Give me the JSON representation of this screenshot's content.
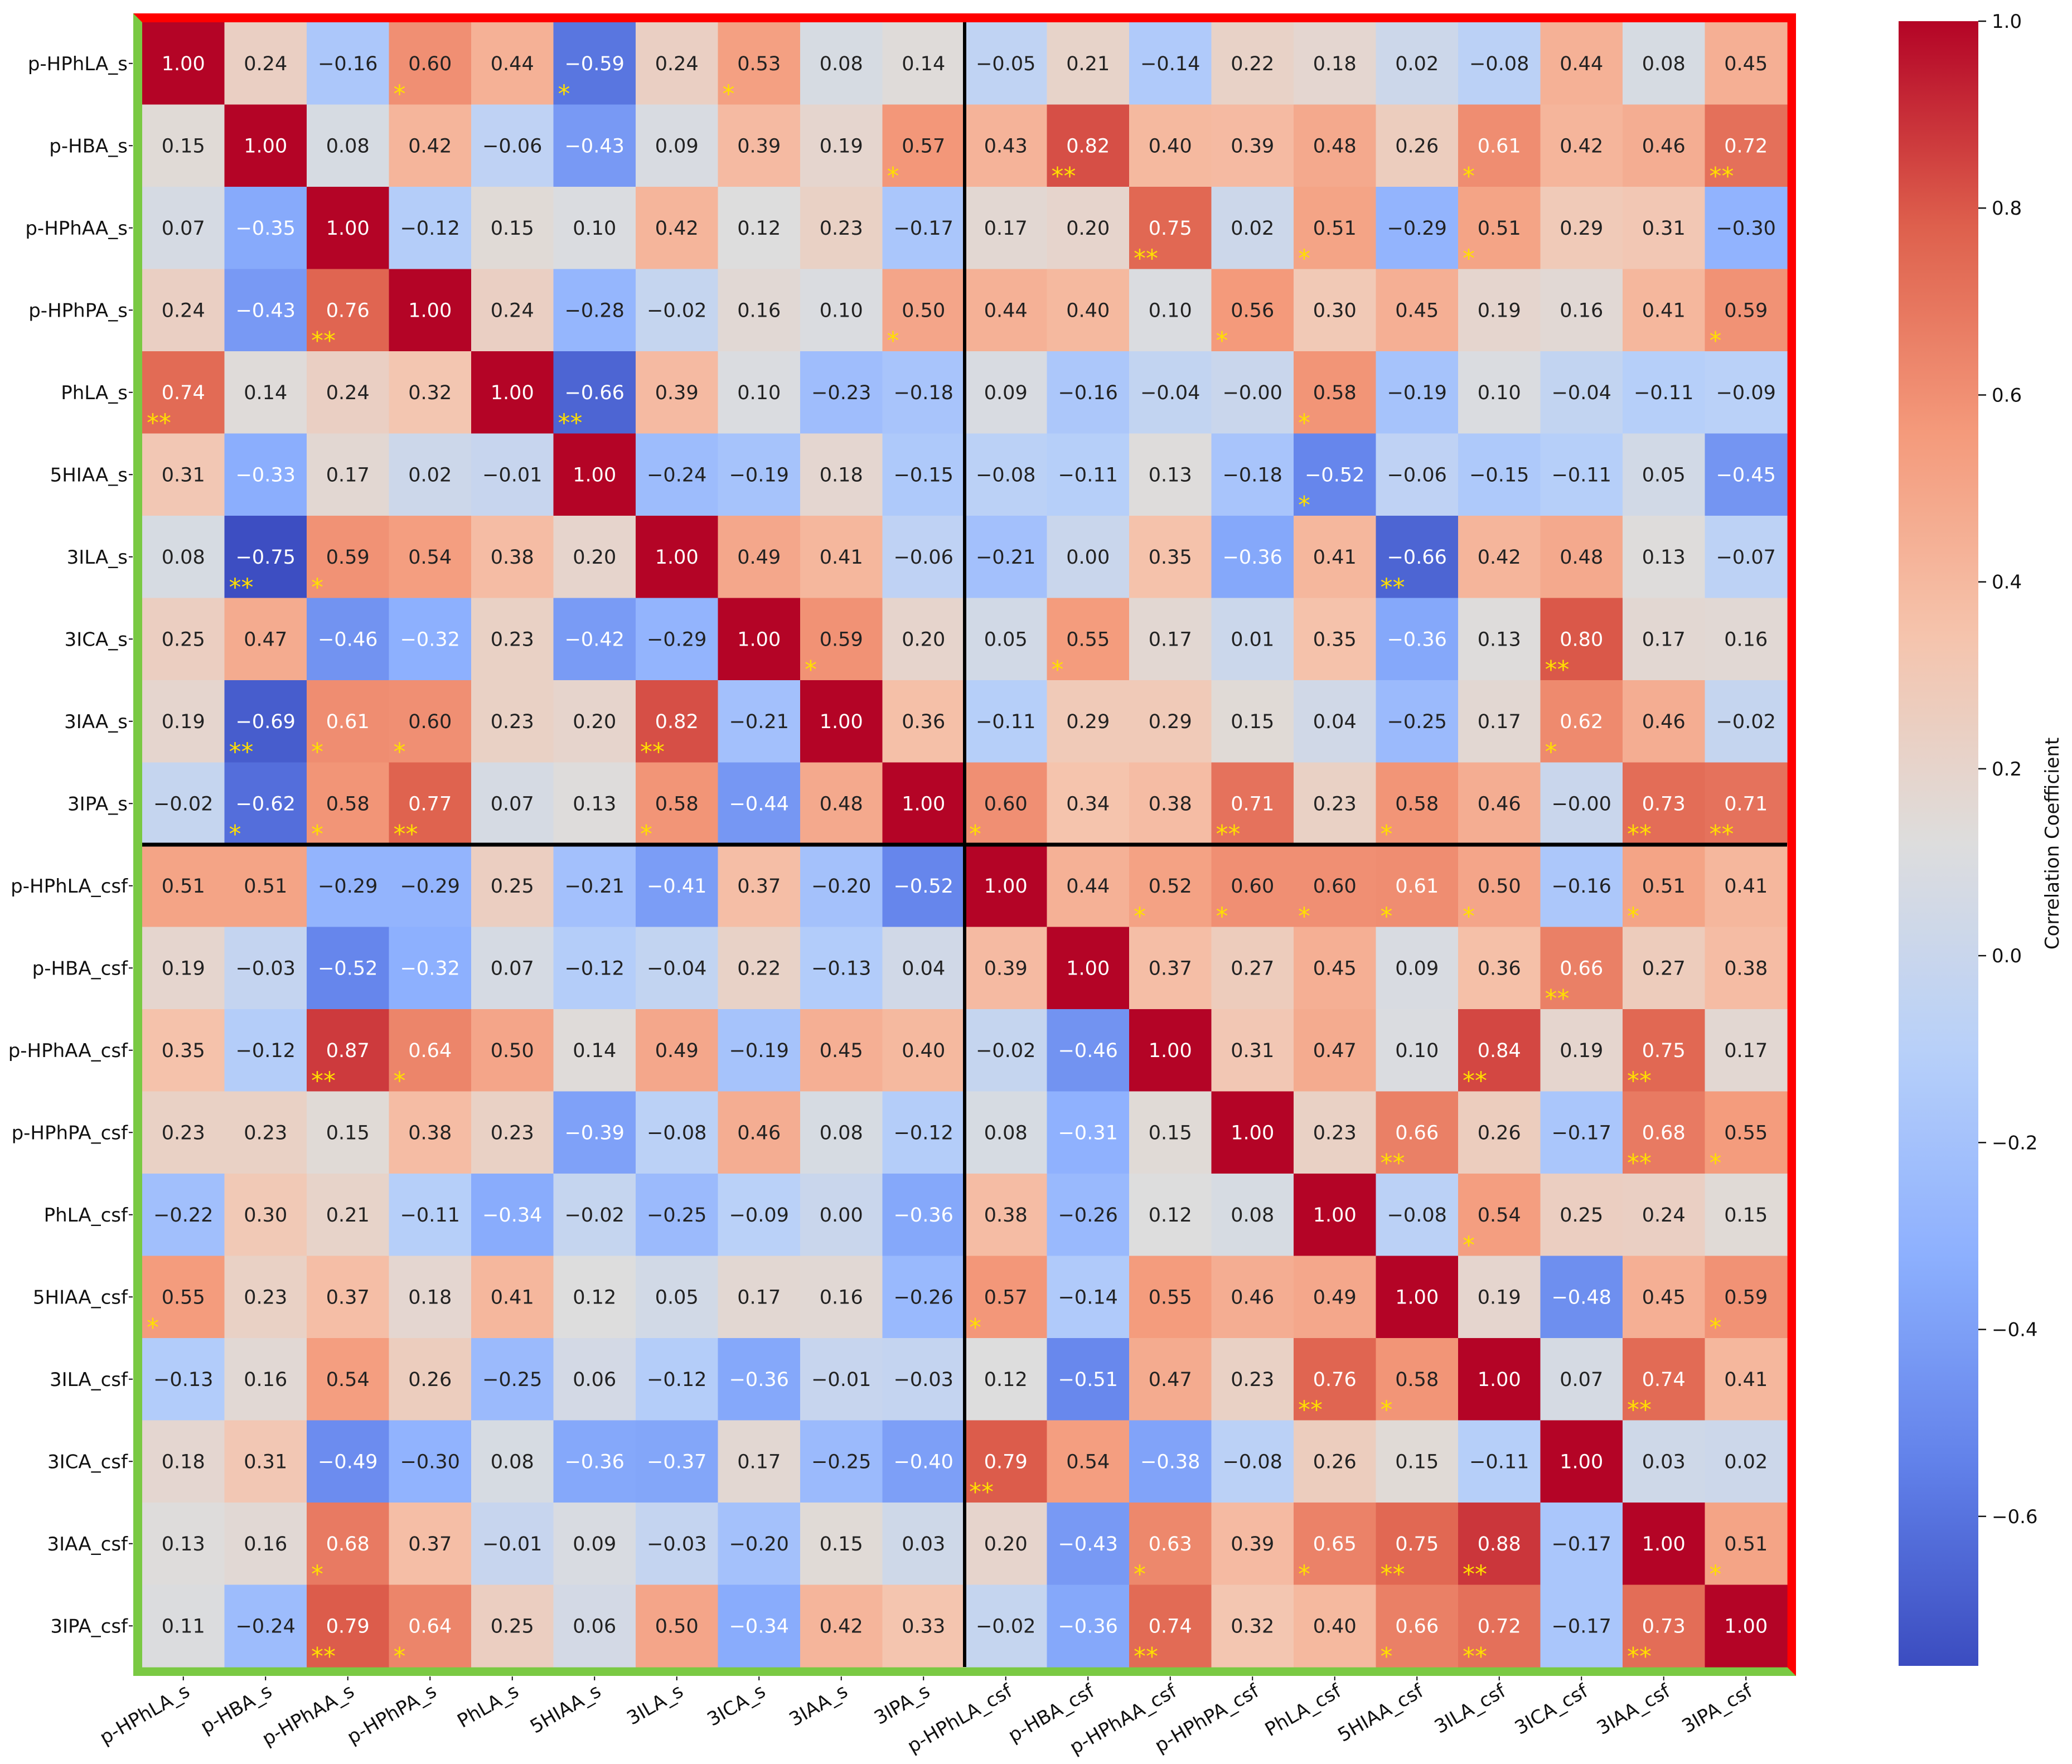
{
  "chart_data": {
    "type": "heatmap",
    "colorbar_label": "Correlation Coefficient",
    "colorbar_range": [
      -0.76,
      1.0
    ],
    "colorbar_ticks": [
      "1.0",
      "0.8",
      "0.6",
      "0.4",
      "0.2",
      "0.0",
      "−0.2",
      "−0.4",
      "−0.6"
    ],
    "colorbar_tick_values": [
      1.0,
      0.8,
      0.6,
      0.4,
      0.2,
      0.0,
      -0.2,
      -0.4,
      -0.6
    ],
    "colors": {
      "low": "#3b4cc0",
      "mid": "#dddddd",
      "high": "#b40426",
      "star": "#ffdf00",
      "frame_top_right": "#ff0000",
      "frame_left_bottom": "#7ac943",
      "divider": "#000000"
    },
    "labels": [
      "p-HPhLA_s",
      "p-HBA_s",
      "p-HPhAA_s",
      "p-HPhPA_s",
      "PhLA_s",
      "5HIAA_s",
      "3ILA_s",
      "3ICA_s",
      "3IAA_s",
      "3IPA_s",
      "p-HPhLA_csf",
      "p-HBA_csf",
      "p-HPhAA_csf",
      "p-HPhPA_csf",
      "PhLA_csf",
      "5HIAA_csf",
      "3ILA_csf",
      "3ICA_csf",
      "3IAA_csf",
      "3IPA_csf"
    ],
    "values": [
      [
        1.0,
        0.24,
        -0.16,
        0.6,
        0.44,
        -0.59,
        0.24,
        0.53,
        0.08,
        0.14,
        -0.05,
        0.21,
        -0.14,
        0.22,
        0.18,
        0.02,
        -0.08,
        0.44,
        0.08,
        0.45
      ],
      [
        0.15,
        1.0,
        0.08,
        0.42,
        -0.06,
        -0.43,
        0.09,
        0.39,
        0.19,
        0.57,
        0.43,
        0.82,
        0.4,
        0.39,
        0.48,
        0.26,
        0.61,
        0.42,
        0.46,
        0.72
      ],
      [
        0.07,
        -0.35,
        1.0,
        -0.12,
        0.15,
        0.1,
        0.42,
        0.12,
        0.23,
        -0.17,
        0.17,
        0.2,
        0.75,
        0.02,
        0.51,
        -0.29,
        0.51,
        0.29,
        0.31,
        -0.3
      ],
      [
        0.24,
        -0.43,
        0.76,
        1.0,
        0.24,
        -0.28,
        -0.02,
        0.16,
        0.1,
        0.5,
        0.44,
        0.4,
        0.1,
        0.56,
        0.3,
        0.45,
        0.19,
        0.16,
        0.41,
        0.59
      ],
      [
        0.74,
        0.14,
        0.24,
        0.32,
        1.0,
        -0.66,
        0.39,
        0.1,
        -0.23,
        -0.18,
        0.09,
        -0.16,
        -0.04,
        -0.0,
        0.58,
        -0.19,
        0.1,
        -0.04,
        -0.11,
        -0.09
      ],
      [
        0.31,
        -0.33,
        0.17,
        0.02,
        -0.01,
        1.0,
        -0.24,
        -0.19,
        0.18,
        -0.15,
        -0.08,
        -0.11,
        0.13,
        -0.18,
        -0.52,
        -0.06,
        -0.15,
        -0.11,
        0.05,
        -0.45
      ],
      [
        0.08,
        -0.75,
        0.59,
        0.54,
        0.38,
        0.2,
        1.0,
        0.49,
        0.41,
        -0.06,
        -0.21,
        0.0,
        0.35,
        -0.36,
        0.41,
        -0.66,
        0.42,
        0.48,
        0.13,
        -0.07
      ],
      [
        0.25,
        0.47,
        -0.46,
        -0.32,
        0.23,
        -0.42,
        -0.29,
        1.0,
        0.59,
        0.2,
        0.05,
        0.55,
        0.17,
        0.01,
        0.35,
        -0.36,
        0.13,
        0.8,
        0.17,
        0.16
      ],
      [
        0.19,
        -0.69,
        0.61,
        0.6,
        0.23,
        0.2,
        0.82,
        -0.21,
        1.0,
        0.36,
        -0.11,
        0.29,
        0.29,
        0.15,
        0.04,
        -0.25,
        0.17,
        0.62,
        0.46,
        -0.02
      ],
      [
        -0.02,
        -0.62,
        0.58,
        0.77,
        0.07,
        0.13,
        0.58,
        -0.44,
        0.48,
        1.0,
        0.6,
        0.34,
        0.38,
        0.71,
        0.23,
        0.58,
        0.46,
        -0.0,
        0.73,
        0.71
      ],
      [
        0.51,
        0.51,
        -0.29,
        -0.29,
        0.25,
        -0.21,
        -0.41,
        0.37,
        -0.2,
        -0.52,
        1.0,
        0.44,
        0.52,
        0.6,
        0.6,
        0.61,
        0.5,
        -0.16,
        0.51,
        0.41
      ],
      [
        0.19,
        -0.03,
        -0.52,
        -0.32,
        0.07,
        -0.12,
        -0.04,
        0.22,
        -0.13,
        0.04,
        0.39,
        1.0,
        0.37,
        0.27,
        0.45,
        0.09,
        0.36,
        0.66,
        0.27,
        0.38
      ],
      [
        0.35,
        -0.12,
        0.87,
        0.64,
        0.5,
        0.14,
        0.49,
        -0.19,
        0.45,
        0.4,
        -0.02,
        -0.46,
        1.0,
        0.31,
        0.47,
        0.1,
        0.84,
        0.19,
        0.75,
        0.17
      ],
      [
        0.23,
        0.23,
        0.15,
        0.38,
        0.23,
        -0.39,
        -0.08,
        0.46,
        0.08,
        -0.12,
        0.08,
        -0.31,
        0.15,
        1.0,
        0.23,
        0.66,
        0.26,
        -0.17,
        0.68,
        0.55
      ],
      [
        -0.22,
        0.3,
        0.21,
        -0.11,
        -0.34,
        -0.02,
        -0.25,
        -0.09,
        0.0,
        -0.36,
        0.38,
        -0.26,
        0.12,
        0.08,
        1.0,
        -0.08,
        0.54,
        0.25,
        0.24,
        0.15
      ],
      [
        0.55,
        0.23,
        0.37,
        0.18,
        0.41,
        0.12,
        0.05,
        0.17,
        0.16,
        -0.26,
        0.57,
        -0.14,
        0.55,
        0.46,
        0.49,
        1.0,
        0.19,
        -0.48,
        0.45,
        0.59
      ],
      [
        -0.13,
        0.16,
        0.54,
        0.26,
        -0.25,
        0.06,
        -0.12,
        -0.36,
        -0.01,
        -0.03,
        0.12,
        -0.51,
        0.47,
        0.23,
        0.76,
        0.58,
        1.0,
        0.07,
        0.74,
        0.41
      ],
      [
        0.18,
        0.31,
        -0.49,
        -0.3,
        0.08,
        -0.36,
        -0.37,
        0.17,
        -0.25,
        -0.4,
        0.79,
        0.54,
        -0.38,
        -0.08,
        0.26,
        0.15,
        -0.11,
        1.0,
        0.03,
        0.02
      ],
      [
        0.13,
        0.16,
        0.68,
        0.37,
        -0.01,
        0.09,
        -0.03,
        -0.2,
        0.15,
        0.03,
        0.2,
        -0.43,
        0.63,
        0.39,
        0.65,
        0.75,
        0.88,
        -0.17,
        1.0,
        0.51
      ],
      [
        0.11,
        -0.24,
        0.79,
        0.64,
        0.25,
        0.06,
        0.5,
        -0.34,
        0.42,
        0.33,
        -0.02,
        -0.36,
        0.74,
        0.32,
        0.4,
        0.66,
        0.72,
        -0.17,
        0.73,
        1.0
      ]
    ],
    "annotations": [
      [
        "1.00",
        "0.24",
        "−0.16",
        "0.60",
        "0.44",
        "−0.59",
        "0.24",
        "0.53",
        "0.08",
        "0.14",
        "−0.05",
        "0.21",
        "−0.14",
        "0.22",
        "0.18",
        "0.02",
        "−0.08",
        "0.44",
        "0.08",
        "0.45"
      ],
      [
        "0.15",
        "1.00",
        "0.08",
        "0.42",
        "−0.06",
        "−0.43",
        "0.09",
        "0.39",
        "0.19",
        "0.57",
        "0.43",
        "0.82",
        "0.40",
        "0.39",
        "0.48",
        "0.26",
        "0.61",
        "0.42",
        "0.46",
        "0.72"
      ],
      [
        "0.07",
        "−0.35",
        "1.00",
        "−0.12",
        "0.15",
        "0.10",
        "0.42",
        "0.12",
        "0.23",
        "−0.17",
        "0.17",
        "0.20",
        "0.75",
        "0.02",
        "0.51",
        "−0.29",
        "0.51",
        "0.29",
        "0.31",
        "−0.30"
      ],
      [
        "0.24",
        "−0.43",
        "0.76",
        "1.00",
        "0.24",
        "−0.28",
        "−0.02",
        "0.16",
        "0.10",
        "0.50",
        "0.44",
        "0.40",
        "0.10",
        "0.56",
        "0.30",
        "0.45",
        "0.19",
        "0.16",
        "0.41",
        "0.59"
      ],
      [
        "0.74",
        "0.14",
        "0.24",
        "0.32",
        "1.00",
        "−0.66",
        "0.39",
        "0.10",
        "−0.23",
        "−0.18",
        "0.09",
        "−0.16",
        "−0.04",
        "−0.00",
        "0.58",
        "−0.19",
        "0.10",
        "−0.04",
        "−0.11",
        "−0.09"
      ],
      [
        "0.31",
        "−0.33",
        "0.17",
        "0.02",
        "−0.01",
        "1.00",
        "−0.24",
        "−0.19",
        "0.18",
        "−0.15",
        "−0.08",
        "−0.11",
        "0.13",
        "−0.18",
        "−0.52",
        "−0.06",
        "−0.15",
        "−0.11",
        "0.05",
        "−0.45"
      ],
      [
        "0.08",
        "−0.75",
        "0.59",
        "0.54",
        "0.38",
        "0.20",
        "1.00",
        "0.49",
        "0.41",
        "−0.06",
        "−0.21",
        "0.00",
        "0.35",
        "−0.36",
        "0.41",
        "−0.66",
        "0.42",
        "0.48",
        "0.13",
        "−0.07"
      ],
      [
        "0.25",
        "0.47",
        "−0.46",
        "−0.32",
        "0.23",
        "−0.42",
        "−0.29",
        "1.00",
        "0.59",
        "0.20",
        "0.05",
        "0.55",
        "0.17",
        "0.01",
        "0.35",
        "−0.36",
        "0.13",
        "0.80",
        "0.17",
        "0.16"
      ],
      [
        "0.19",
        "−0.69",
        "0.61",
        "0.60",
        "0.23",
        "0.20",
        "0.82",
        "−0.21",
        "1.00",
        "0.36",
        "−0.11",
        "0.29",
        "0.29",
        "0.15",
        "0.04",
        "−0.25",
        "0.17",
        "0.62",
        "0.46",
        "−0.02"
      ],
      [
        "−0.02",
        "−0.62",
        "0.58",
        "0.77",
        "0.07",
        "0.13",
        "0.58",
        "−0.44",
        "0.48",
        "1.00",
        "0.60",
        "0.34",
        "0.38",
        "0.71",
        "0.23",
        "0.58",
        "0.46",
        "−0.00",
        "0.73",
        "0.71"
      ],
      [
        "0.51",
        "0.51",
        "−0.29",
        "−0.29",
        "0.25",
        "−0.21",
        "−0.41",
        "0.37",
        "−0.20",
        "−0.52",
        "1.00",
        "0.44",
        "0.52",
        "0.60",
        "0.60",
        "0.61",
        "0.50",
        "−0.16",
        "0.51",
        "0.41"
      ],
      [
        "0.19",
        "−0.03",
        "−0.52",
        "−0.32",
        "0.07",
        "−0.12",
        "−0.04",
        "0.22",
        "−0.13",
        "0.04",
        "0.39",
        "1.00",
        "0.37",
        "0.27",
        "0.45",
        "0.09",
        "0.36",
        "0.66",
        "0.27",
        "0.38"
      ],
      [
        "0.35",
        "−0.12",
        "0.87",
        "0.64",
        "0.50",
        "0.14",
        "0.49",
        "−0.19",
        "0.45",
        "0.40",
        "−0.02",
        "−0.46",
        "1.00",
        "0.31",
        "0.47",
        "0.10",
        "0.84",
        "0.19",
        "0.75",
        "0.17"
      ],
      [
        "0.23",
        "0.23",
        "0.15",
        "0.38",
        "0.23",
        "−0.39",
        "−0.08",
        "0.46",
        "0.08",
        "−0.12",
        "0.08",
        "−0.31",
        "0.15",
        "1.00",
        "0.23",
        "0.66",
        "0.26",
        "−0.17",
        "0.68",
        "0.55"
      ],
      [
        "−0.22",
        "0.30",
        "0.21",
        "−0.11",
        "−0.34",
        "−0.02",
        "−0.25",
        "−0.09",
        "0.00",
        "−0.36",
        "0.38",
        "−0.26",
        "0.12",
        "0.08",
        "1.00",
        "−0.08",
        "0.54",
        "0.25",
        "0.24",
        "0.15"
      ],
      [
        "0.55",
        "0.23",
        "0.37",
        "0.18",
        "0.41",
        "0.12",
        "0.05",
        "0.17",
        "0.16",
        "−0.26",
        "0.57",
        "−0.14",
        "0.55",
        "0.46",
        "0.49",
        "1.00",
        "0.19",
        "−0.48",
        "0.45",
        "0.59"
      ],
      [
        "−0.13",
        "0.16",
        "0.54",
        "0.26",
        "−0.25",
        "0.06",
        "−0.12",
        "−0.36",
        "−0.01",
        "−0.03",
        "0.12",
        "−0.51",
        "0.47",
        "0.23",
        "0.76",
        "0.58",
        "1.00",
        "0.07",
        "0.74",
        "0.41"
      ],
      [
        "0.18",
        "0.31",
        "−0.49",
        "−0.30",
        "0.08",
        "−0.36",
        "−0.37",
        "0.17",
        "−0.25",
        "−0.40",
        "0.79",
        "0.54",
        "−0.38",
        "−0.08",
        "0.26",
        "0.15",
        "−0.11",
        "1.00",
        "0.03",
        "0.02"
      ],
      [
        "0.13",
        "0.16",
        "0.68",
        "0.37",
        "−0.01",
        "0.09",
        "−0.03",
        "−0.20",
        "0.15",
        "0.03",
        "0.20",
        "−0.43",
        "0.63",
        "0.39",
        "0.65",
        "0.75",
        "0.88",
        "−0.17",
        "1.00",
        "0.51"
      ],
      [
        "0.11",
        "−0.24",
        "0.79",
        "0.64",
        "0.25",
        "0.06",
        "0.50",
        "−0.34",
        "0.42",
        "0.33",
        "−0.02",
        "−0.36",
        "0.74",
        "0.32",
        "0.40",
        "0.66",
        "0.72",
        "−0.17",
        "0.73",
        "1.00"
      ]
    ],
    "significance": [
      [
        "",
        "",
        "",
        "*",
        "",
        "*",
        "",
        "*",
        "",
        "",
        "",
        "",
        "",
        "",
        "",
        "",
        "",
        "",
        "",
        ""
      ],
      [
        "",
        "",
        "",
        "",
        "",
        "",
        "",
        "",
        "",
        "*",
        "",
        "**",
        "",
        "",
        "",
        "",
        "*",
        "",
        "",
        "**"
      ],
      [
        "",
        "",
        "",
        "",
        "",
        "",
        "",
        "",
        "",
        "",
        "",
        "",
        "**",
        "",
        "*",
        "",
        "*",
        "",
        "",
        ""
      ],
      [
        "",
        "",
        "**",
        "",
        "",
        "",
        "",
        "",
        "",
        "*",
        "",
        "",
        "",
        "*",
        "",
        "",
        "",
        "",
        "",
        "*"
      ],
      [
        "**",
        "",
        "",
        "",
        "",
        "**",
        "",
        "",
        "",
        "",
        "",
        "",
        "",
        "",
        "*",
        "",
        "",
        "",
        "",
        ""
      ],
      [
        "",
        "",
        "",
        "",
        "",
        "",
        "",
        "",
        "",
        "",
        "",
        "",
        "",
        "",
        "*",
        "",
        "",
        "",
        "",
        ""
      ],
      [
        "",
        "**",
        "*",
        "",
        "",
        "",
        "",
        "",
        "",
        "",
        "",
        "",
        "",
        "",
        "",
        "**",
        "",
        "",
        "",
        ""
      ],
      [
        "",
        "",
        "",
        "",
        "",
        "",
        "",
        "",
        "*",
        "",
        "",
        "*",
        "",
        "",
        "",
        "",
        "",
        "**",
        "",
        ""
      ],
      [
        "",
        "**",
        "*",
        "*",
        "",
        "",
        "**",
        "",
        "",
        "",
        "",
        "",
        "",
        "",
        "",
        "",
        "",
        "*",
        "",
        ""
      ],
      [
        "",
        "*",
        "*",
        "**",
        "",
        "",
        "*",
        "",
        "",
        "",
        "*",
        "",
        "",
        "**",
        "",
        "*",
        "",
        "",
        "**",
        "**"
      ],
      [
        "",
        "",
        "",
        "",
        "",
        "",
        "",
        "",
        "",
        "",
        "",
        "",
        "*",
        "*",
        "*",
        "*",
        "*",
        "",
        "*",
        ""
      ],
      [
        "",
        "",
        "",
        "",
        "",
        "",
        "",
        "",
        "",
        "",
        "",
        "",
        "",
        "",
        "",
        "",
        "",
        "**",
        "",
        ""
      ],
      [
        "",
        "",
        "**",
        "*",
        "",
        "",
        "",
        "",
        "",
        "",
        "",
        "",
        "",
        "",
        "",
        "",
        "**",
        "",
        "**",
        ""
      ],
      [
        "",
        "",
        "",
        "",
        "",
        "",
        "",
        "",
        "",
        "",
        "",
        "",
        "",
        "",
        "",
        "**",
        "",
        "",
        "**",
        "*"
      ],
      [
        "",
        "",
        "",
        "",
        "",
        "",
        "",
        "",
        "",
        "",
        "",
        "",
        "",
        "",
        "",
        "",
        "*",
        "",
        "",
        ""
      ],
      [
        "*",
        "",
        "",
        "",
        "",
        "",
        "",
        "",
        "",
        "",
        "*",
        "",
        "",
        "",
        "",
        "",
        "",
        "",
        "",
        "*"
      ],
      [
        "",
        "",
        "",
        "",
        "",
        "",
        "",
        "",
        "",
        "",
        "",
        "",
        "",
        "",
        "**",
        "*",
        "",
        "",
        "**",
        ""
      ],
      [
        "",
        "",
        "",
        "",
        "",
        "",
        "",
        "",
        "",
        "",
        "**",
        "",
        "",
        "",
        "",
        "",
        "",
        "",
        "",
        ""
      ],
      [
        "",
        "",
        "*",
        "",
        "",
        "",
        "",
        "",
        "",
        "",
        "",
        "",
        "*",
        "",
        "*",
        "**",
        "**",
        "",
        "",
        "*"
      ],
      [
        "",
        "",
        "**",
        "*",
        "",
        "",
        "",
        "",
        "",
        "",
        "",
        "",
        "**",
        "",
        "",
        "*",
        "**",
        "",
        "**",
        ""
      ]
    ]
  }
}
